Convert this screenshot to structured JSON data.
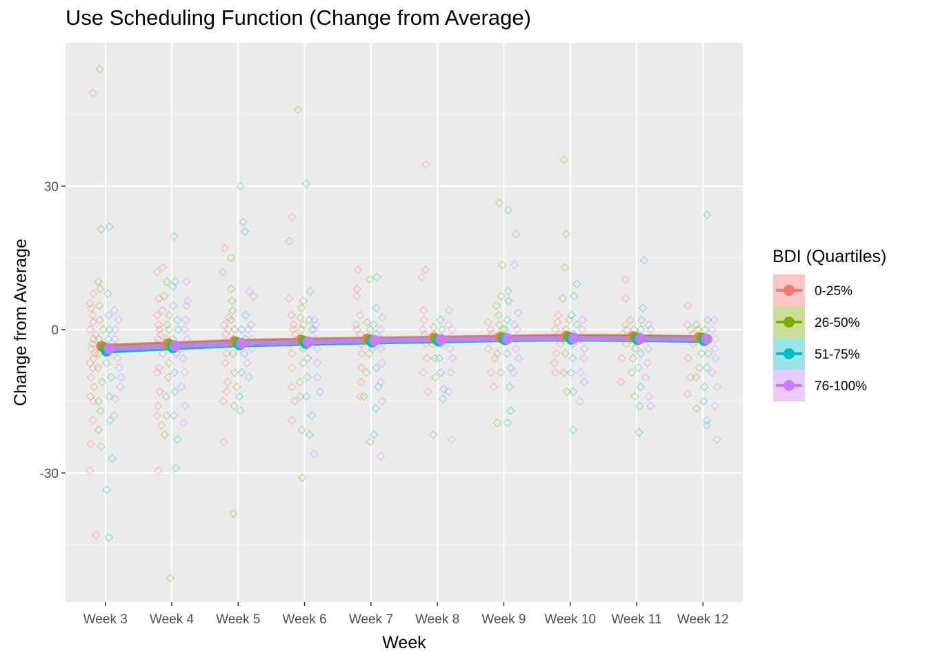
{
  "title": "Use Scheduling Function (Change from Average)",
  "chart_data": {
    "type": "line",
    "title": "Use Scheduling Function (Change from Average)",
    "xlabel": "Week",
    "ylabel": "Change from Average",
    "categories": [
      "Week 3",
      "Week 4",
      "Week 5",
      "Week 6",
      "Week 7",
      "Week 8",
      "Week 9",
      "Week 10",
      "Week 11",
      "Week 12"
    ],
    "ylim": [
      -57,
      60
    ],
    "yticks": [
      -30,
      0,
      30
    ],
    "grid": true,
    "legend_title": "BDI (Quartiles)",
    "legend_position": "right",
    "series": [
      {
        "name": "0-25%",
        "color": "#F8766D",
        "values": [
          -3.5,
          -3.0,
          -2.5,
          -2.2,
          -2.0,
          -1.8,
          -1.6,
          -1.4,
          -1.5,
          -1.7
        ]
      },
      {
        "name": "26-50%",
        "color": "#7CAE00",
        "values": [
          -3.8,
          -3.2,
          -2.7,
          -2.4,
          -2.2,
          -2.0,
          -1.8,
          -1.6,
          -1.6,
          -1.8
        ]
      },
      {
        "name": "51-75%",
        "color": "#00BFC4",
        "values": [
          -4.5,
          -3.8,
          -3.2,
          -2.9,
          -2.6,
          -2.4,
          -2.1,
          -2.0,
          -2.1,
          -2.3
        ]
      },
      {
        "name": "76-100%",
        "color": "#C77CFF",
        "values": [
          -4.0,
          -3.4,
          -2.9,
          -2.6,
          -2.3,
          -2.1,
          -1.9,
          -1.8,
          -1.9,
          -2.0
        ]
      }
    ],
    "scatter_points": {
      "description_of_type": "jittered individual observations",
      "0-25%": {
        "Week 3": [
          49.5,
          7.5,
          5.5,
          4.5,
          3,
          1.5,
          0,
          -1,
          -2,
          -3,
          -4,
          -5,
          -6,
          -7,
          -8,
          -10,
          -12,
          -14,
          -15,
          -19,
          -24,
          -29.5,
          -43
        ],
        "Week 4": [
          13,
          12,
          6.5,
          4,
          3,
          1,
          0,
          -1,
          -2,
          -3,
          -5,
          -8,
          -9,
          -13,
          -16,
          -18,
          -20,
          -29.5
        ],
        "Week 5": [
          17,
          12,
          2.5,
          1,
          0,
          -1,
          -3,
          -5,
          -7,
          -11,
          -13,
          -15,
          -23.5
        ],
        "Week 6": [
          23.5,
          18.5,
          6.5,
          3,
          1,
          0,
          -1,
          -3,
          -5,
          -8,
          -12,
          -15,
          -19
        ],
        "Week 7": [
          12.5,
          8.5,
          7,
          3,
          1,
          0,
          -1,
          -3,
          -5,
          -8,
          -11,
          -14
        ],
        "Week 8": [
          34.5,
          12.5,
          11,
          4,
          2,
          0,
          -1,
          -3,
          -6,
          -9,
          -13
        ],
        "Week 9": [
          1.5,
          0,
          -1,
          -2,
          -4,
          -6,
          -9,
          -12
        ],
        "Week 10": [
          3,
          1.5,
          0,
          -1,
          -3,
          -5,
          -7,
          -9
        ],
        "Week 11": [
          10.5,
          6.5,
          1,
          0,
          -1,
          -3,
          -6,
          -11
        ],
        "Week 12": [
          5,
          1,
          0,
          -1,
          -3,
          -6,
          -10,
          -13.5
        ]
      },
      "26-50%": {
        "Week 3": [
          54.5,
          21,
          10,
          8.5,
          5,
          2,
          0,
          -2,
          -5,
          -8,
          -11,
          -15,
          -17,
          -21,
          -24.5
        ],
        "Week 4": [
          10,
          7,
          3,
          1,
          0,
          -2,
          -4,
          -7,
          -10,
          -14,
          -18,
          -22,
          -52
        ],
        "Week 5": [
          15,
          8.5,
          6,
          4,
          2,
          0,
          -2,
          -5,
          -9,
          -12,
          -16,
          -38.5
        ],
        "Week 6": [
          46,
          6,
          4.5,
          2.5,
          1,
          0,
          -2,
          -4,
          -7,
          -11,
          -14,
          -21,
          -31
        ],
        "Week 7": [
          10.5,
          1.5,
          0,
          -2,
          -5,
          -9,
          -14,
          -23.5
        ],
        "Week 8": [
          0.5,
          -1,
          -3,
          -6,
          -10,
          -22
        ],
        "Week 9": [
          26.5,
          13.5,
          7,
          5,
          3,
          1,
          0,
          -2,
          -5,
          -9,
          -19.5
        ],
        "Week 10": [
          35.5,
          20,
          13,
          6.5,
          2,
          0,
          -2,
          -5,
          -9,
          -13
        ],
        "Week 11": [
          2,
          0,
          -2,
          -4,
          -6,
          -9,
          -14
        ],
        "Week 12": [
          1,
          0,
          -2,
          -5,
          -8,
          -10,
          -16.5
        ]
      },
      "51-75%": {
        "Week 3": [
          21.5,
          7.5,
          3,
          0,
          -2,
          -4,
          -7,
          -10,
          -14,
          -19,
          -27,
          -33.5,
          -43.5
        ],
        "Week 4": [
          19.5,
          10,
          9,
          5,
          2,
          0,
          -2,
          -5,
          -9,
          -13,
          -18,
          -23,
          -29
        ],
        "Week 5": [
          30,
          22.5,
          20.5,
          3,
          0,
          -2,
          -5,
          -9,
          -14,
          -17
        ],
        "Week 6": [
          30.5,
          8,
          2,
          0,
          -3,
          -6,
          -10,
          -14,
          -18,
          -22
        ],
        "Week 7": [
          11,
          4.5,
          1,
          -1,
          -4,
          -8,
          -12,
          -16.5,
          -22
        ],
        "Week 8": [
          2,
          0,
          -3,
          -6,
          -9,
          -12.5,
          -14.5
        ],
        "Week 9": [
          25,
          8,
          6,
          2,
          0,
          -2,
          -5,
          -8,
          -12,
          -17,
          -19.5
        ],
        "Week 10": [
          9.5,
          7,
          3,
          1,
          -1,
          -3,
          -6,
          -9,
          -13,
          -21
        ],
        "Week 11": [
          14.5,
          4.5,
          2,
          0,
          -2,
          -5,
          -8,
          -12,
          -16,
          -21.5
        ],
        "Week 12": [
          24,
          2,
          0,
          -2,
          -5,
          -8,
          -12,
          -15,
          -19,
          -20
        ]
      },
      "76-100%": {
        "Week 3": [
          4,
          2,
          0,
          -2,
          -4,
          -6,
          -8,
          -10,
          -12,
          -14.5,
          -18
        ],
        "Week 4": [
          10,
          6,
          5,
          2,
          0,
          -2,
          -4,
          -6,
          -9,
          -12,
          -16,
          -19.5
        ],
        "Week 5": [
          8,
          7,
          1,
          0,
          -2,
          -4,
          -7,
          -10
        ],
        "Week 6": [
          2,
          1,
          0,
          -2,
          -4,
          -7,
          -10,
          -13,
          -26
        ],
        "Week 7": [
          2.5,
          0,
          -2,
          -4,
          -7,
          -11,
          -15,
          -26.5
        ],
        "Week 8": [
          4,
          1,
          0,
          -2,
          -4,
          -6,
          -9,
          -13,
          -23
        ],
        "Week 9": [
          20,
          13.5,
          3.5,
          1,
          0,
          -2,
          -4,
          -6,
          -9
        ],
        "Week 10": [
          2,
          0,
          -2,
          -4,
          -6,
          -9,
          -11,
          -15
        ],
        "Week 11": [
          1,
          0,
          -2,
          -4,
          -7,
          -10,
          -14,
          -16
        ],
        "Week 12": [
          2,
          0,
          -2,
          -4,
          -6,
          -9,
          -12,
          -16,
          -23
        ]
      }
    }
  }
}
